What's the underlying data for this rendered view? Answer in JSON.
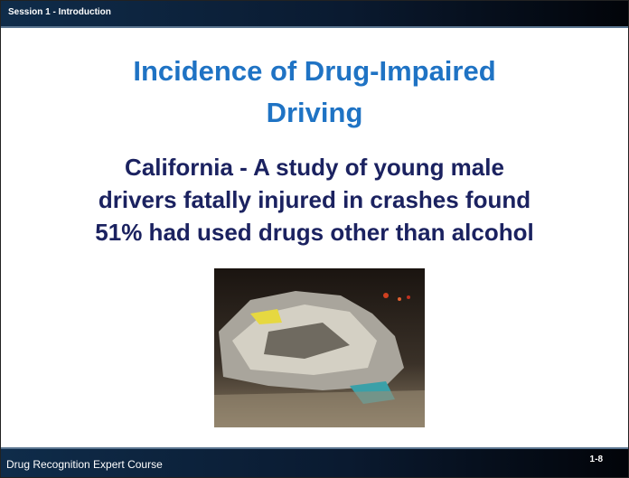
{
  "header": {
    "session": "Session 1 - Introduction"
  },
  "title": [
    "Incidence of Drug-Impaired",
    "Driving"
  ],
  "body": [
    "California - A study of young male",
    "drivers fatally injured in crashes found",
    "51% had used drugs other than alcohol"
  ],
  "footer": {
    "course": "Drug Recognition Expert Course",
    "slide_number": "1-8"
  }
}
